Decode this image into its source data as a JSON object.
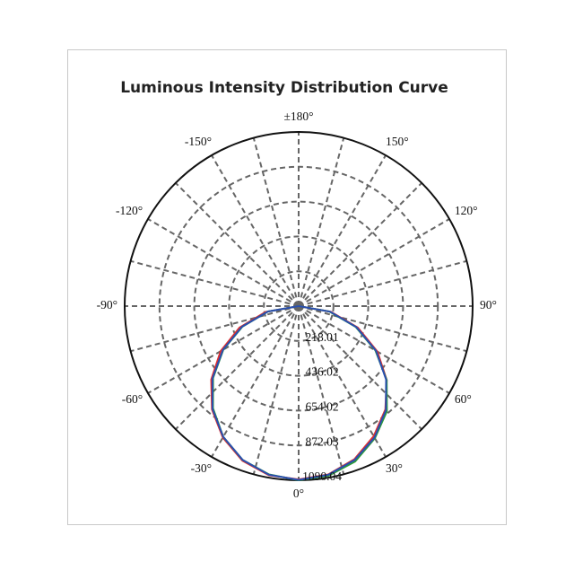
{
  "chart_data": {
    "type": "polar",
    "title": "Luminous Intensity Distribution Curve",
    "x": [
      -90,
      -80,
      -70,
      -60,
      -50,
      -40,
      -30,
      -20,
      -10,
      0,
      10,
      20,
      30,
      40,
      50,
      60,
      70,
      80,
      90
    ],
    "series": [
      {
        "color": "#e03030",
        "values": [
          0,
          210,
          395,
          565,
          715,
          845,
          950,
          1030,
          1075,
          1085,
          1070,
          1020,
          940,
          845,
          720,
          570,
          395,
          205,
          0
        ]
      },
      {
        "color": "#2e9a3a",
        "values": [
          0,
          195,
          375,
          545,
          700,
          835,
          945,
          1025,
          1070,
          1090,
          1078,
          1035,
          955,
          860,
          720,
          555,
          380,
          195,
          0
        ]
      },
      {
        "color": "#2a4fb0",
        "values": [
          0,
          195,
          378,
          548,
          705,
          840,
          945,
          1025,
          1072,
          1088,
          1072,
          1025,
          950,
          850,
          715,
          560,
          385,
          200,
          0
        ]
      }
    ],
    "rlim": [
      0,
      1090.04
    ],
    "rticks": [
      218.01,
      436.02,
      654.02,
      872.03,
      1090.04
    ],
    "thetaticks": [
      {
        "value": 0,
        "label": "0°"
      },
      {
        "value": 30,
        "label": "30°"
      },
      {
        "value": 60,
        "label": "60°"
      },
      {
        "value": 90,
        "label": "90°"
      },
      {
        "value": 120,
        "label": "120°"
      },
      {
        "value": 150,
        "label": "150°"
      },
      {
        "value": 180,
        "label": "±180°"
      },
      {
        "value": -150,
        "label": "-150°"
      },
      {
        "value": -120,
        "label": "-120°"
      },
      {
        "value": -90,
        "label": "-90°"
      },
      {
        "value": -60,
        "label": "-60°"
      },
      {
        "value": -30,
        "label": "-30°"
      }
    ],
    "grid": true
  }
}
